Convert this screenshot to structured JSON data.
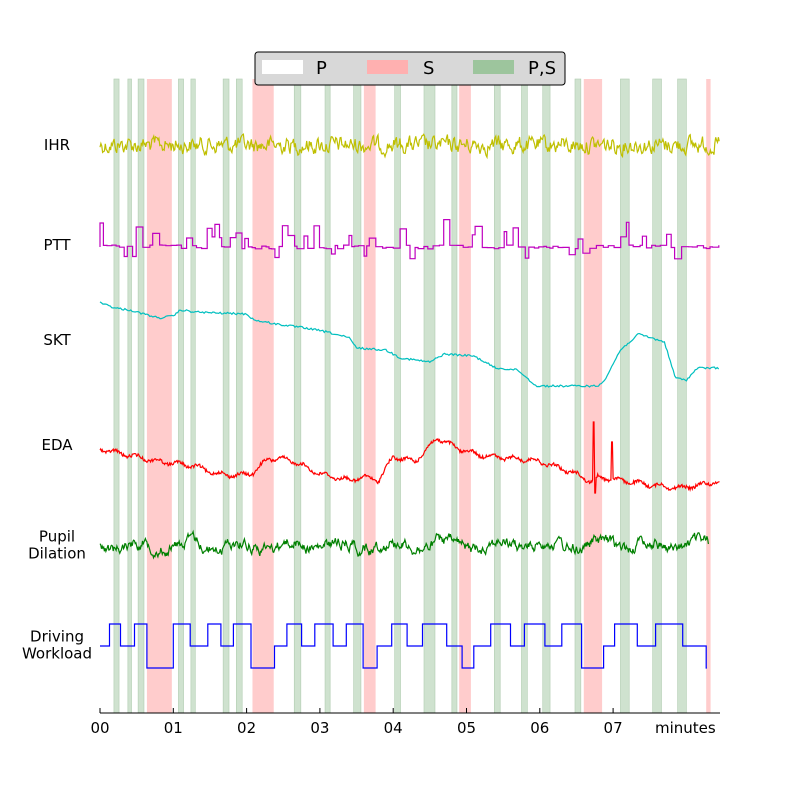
{
  "chart_data": {
    "type": "line",
    "xlabel": "minutes",
    "x_ticks": [
      "00",
      "01",
      "02",
      "03",
      "04",
      "05",
      "06",
      "07"
    ],
    "x_range_minutes": [
      0,
      8.5
    ],
    "grid": false,
    "legend": {
      "placement": "top-center",
      "entries": [
        {
          "label": "P",
          "color": "#ffffff"
        },
        {
          "label": "S",
          "color": "#ffb0b0"
        },
        {
          "label": "P,S",
          "color": "#9dc59d"
        }
      ]
    },
    "signals": [
      {
        "name": "IHR",
        "label_lines": [
          "IHR"
        ],
        "color": "#bfbf00"
      },
      {
        "name": "PTT",
        "label_lines": [
          "PTT"
        ],
        "color": "#bf00bf"
      },
      {
        "name": "SKT",
        "label_lines": [
          "SKT"
        ],
        "color": "#00bfbf"
      },
      {
        "name": "EDA",
        "label_lines": [
          "EDA"
        ],
        "color": "#ff0000"
      },
      {
        "name": "Pupil Dilation",
        "label_lines": [
          "Pupil",
          "Dilation"
        ],
        "color": "#008000"
      },
      {
        "name": "Driving Workload",
        "label_lines": [
          "Driving",
          "Workload"
        ],
        "color": "#0000ff"
      }
    ],
    "s_intervals_minutes": [
      [
        0.64,
        0.98
      ],
      [
        2.08,
        2.37
      ],
      [
        3.6,
        3.76
      ],
      [
        4.9,
        5.06
      ],
      [
        6.6,
        6.85
      ],
      [
        8.27,
        8.33
      ]
    ],
    "ps_intervals_minutes": [
      [
        0.19,
        0.26
      ],
      [
        0.38,
        0.43
      ],
      [
        0.52,
        0.6
      ],
      [
        1.07,
        1.14
      ],
      [
        1.24,
        1.3
      ],
      [
        1.68,
        1.76
      ],
      [
        1.86,
        1.94
      ],
      [
        2.65,
        2.74
      ],
      [
        3.07,
        3.14
      ],
      [
        3.46,
        3.56
      ],
      [
        4.02,
        4.1
      ],
      [
        4.42,
        4.57
      ],
      [
        4.8,
        4.87
      ],
      [
        5.38,
        5.46
      ],
      [
        5.75,
        5.83
      ],
      [
        6.04,
        6.14
      ],
      [
        6.48,
        6.56
      ],
      [
        7.1,
        7.22
      ],
      [
        7.54,
        7.66
      ],
      [
        7.88,
        8.0
      ]
    ],
    "skt_levels": [
      [
        0.0,
        0.12
      ],
      [
        0.2,
        0.18
      ],
      [
        0.4,
        0.2
      ],
      [
        0.6,
        0.24
      ],
      [
        0.8,
        0.28
      ],
      [
        1.0,
        0.26
      ],
      [
        1.1,
        0.2
      ],
      [
        1.3,
        0.22
      ],
      [
        1.6,
        0.23
      ],
      [
        2.0,
        0.24
      ],
      [
        2.1,
        0.3
      ],
      [
        2.4,
        0.34
      ],
      [
        2.8,
        0.38
      ],
      [
        3.1,
        0.42
      ],
      [
        3.4,
        0.48
      ],
      [
        3.5,
        0.58
      ],
      [
        3.9,
        0.6
      ],
      [
        4.1,
        0.68
      ],
      [
        4.5,
        0.72
      ],
      [
        4.7,
        0.64
      ],
      [
        5.1,
        0.66
      ],
      [
        5.4,
        0.78
      ],
      [
        5.7,
        0.8
      ],
      [
        5.95,
        0.96
      ],
      [
        6.3,
        0.96
      ],
      [
        6.8,
        0.96
      ],
      [
        6.9,
        0.88
      ],
      [
        7.1,
        0.6
      ],
      [
        7.35,
        0.44
      ],
      [
        7.7,
        0.52
      ],
      [
        7.85,
        0.88
      ],
      [
        8.0,
        0.9
      ],
      [
        8.15,
        0.78
      ],
      [
        8.45,
        0.78
      ]
    ],
    "eda_levels": [
      [
        0.0,
        0.5
      ],
      [
        0.5,
        0.6
      ],
      [
        0.8,
        0.66
      ],
      [
        1.0,
        0.68
      ],
      [
        1.3,
        0.72
      ],
      [
        1.6,
        0.82
      ],
      [
        1.9,
        0.84
      ],
      [
        2.1,
        0.8
      ],
      [
        2.3,
        0.62
      ],
      [
        2.6,
        0.64
      ],
      [
        3.0,
        0.82
      ],
      [
        3.4,
        0.9
      ],
      [
        3.6,
        0.86
      ],
      [
        3.8,
        0.9
      ],
      [
        4.0,
        0.6
      ],
      [
        4.3,
        0.66
      ],
      [
        4.6,
        0.36
      ],
      [
        4.9,
        0.5
      ],
      [
        5.2,
        0.58
      ],
      [
        5.6,
        0.62
      ],
      [
        5.9,
        0.64
      ],
      [
        6.2,
        0.72
      ],
      [
        6.5,
        0.82
      ],
      [
        6.7,
        0.92
      ],
      [
        6.8,
        0.86
      ],
      [
        7.1,
        0.9
      ],
      [
        7.5,
        0.96
      ],
      [
        7.9,
        1.0
      ],
      [
        8.2,
        0.96
      ],
      [
        8.4,
        0.92
      ]
    ],
    "workload_segments": [
      [
        0.0,
        0.13,
        "mid"
      ],
      [
        0.13,
        0.28,
        "high"
      ],
      [
        0.28,
        0.47,
        "mid"
      ],
      [
        0.47,
        0.64,
        "high"
      ],
      [
        0.64,
        1.0,
        "low"
      ],
      [
        1.0,
        1.23,
        "high"
      ],
      [
        1.23,
        1.47,
        "mid"
      ],
      [
        1.47,
        1.65,
        "high"
      ],
      [
        1.65,
        1.82,
        "mid"
      ],
      [
        1.82,
        2.06,
        "high"
      ],
      [
        2.06,
        2.38,
        "low"
      ],
      [
        2.38,
        2.55,
        "mid"
      ],
      [
        2.55,
        2.75,
        "high"
      ],
      [
        2.75,
        2.93,
        "mid"
      ],
      [
        2.93,
        3.18,
        "high"
      ],
      [
        3.18,
        3.36,
        "mid"
      ],
      [
        3.36,
        3.59,
        "high"
      ],
      [
        3.59,
        3.78,
        "low"
      ],
      [
        3.78,
        3.98,
        "mid"
      ],
      [
        3.98,
        4.19,
        "high"
      ],
      [
        4.19,
        4.4,
        "mid"
      ],
      [
        4.4,
        4.73,
        "high"
      ],
      [
        4.73,
        4.94,
        "mid"
      ],
      [
        4.94,
        5.1,
        "low"
      ],
      [
        5.1,
        5.33,
        "mid"
      ],
      [
        5.33,
        5.6,
        "high"
      ],
      [
        5.6,
        5.79,
        "mid"
      ],
      [
        5.79,
        6.07,
        "high"
      ],
      [
        6.07,
        6.3,
        "mid"
      ],
      [
        6.3,
        6.57,
        "high"
      ],
      [
        6.57,
        6.87,
        "low"
      ],
      [
        6.87,
        7.02,
        "mid"
      ],
      [
        7.02,
        7.33,
        "high"
      ],
      [
        7.33,
        7.58,
        "mid"
      ],
      [
        7.58,
        7.95,
        "high"
      ],
      [
        7.95,
        8.27,
        "mid"
      ],
      [
        8.27,
        8.28,
        "low"
      ]
    ]
  }
}
